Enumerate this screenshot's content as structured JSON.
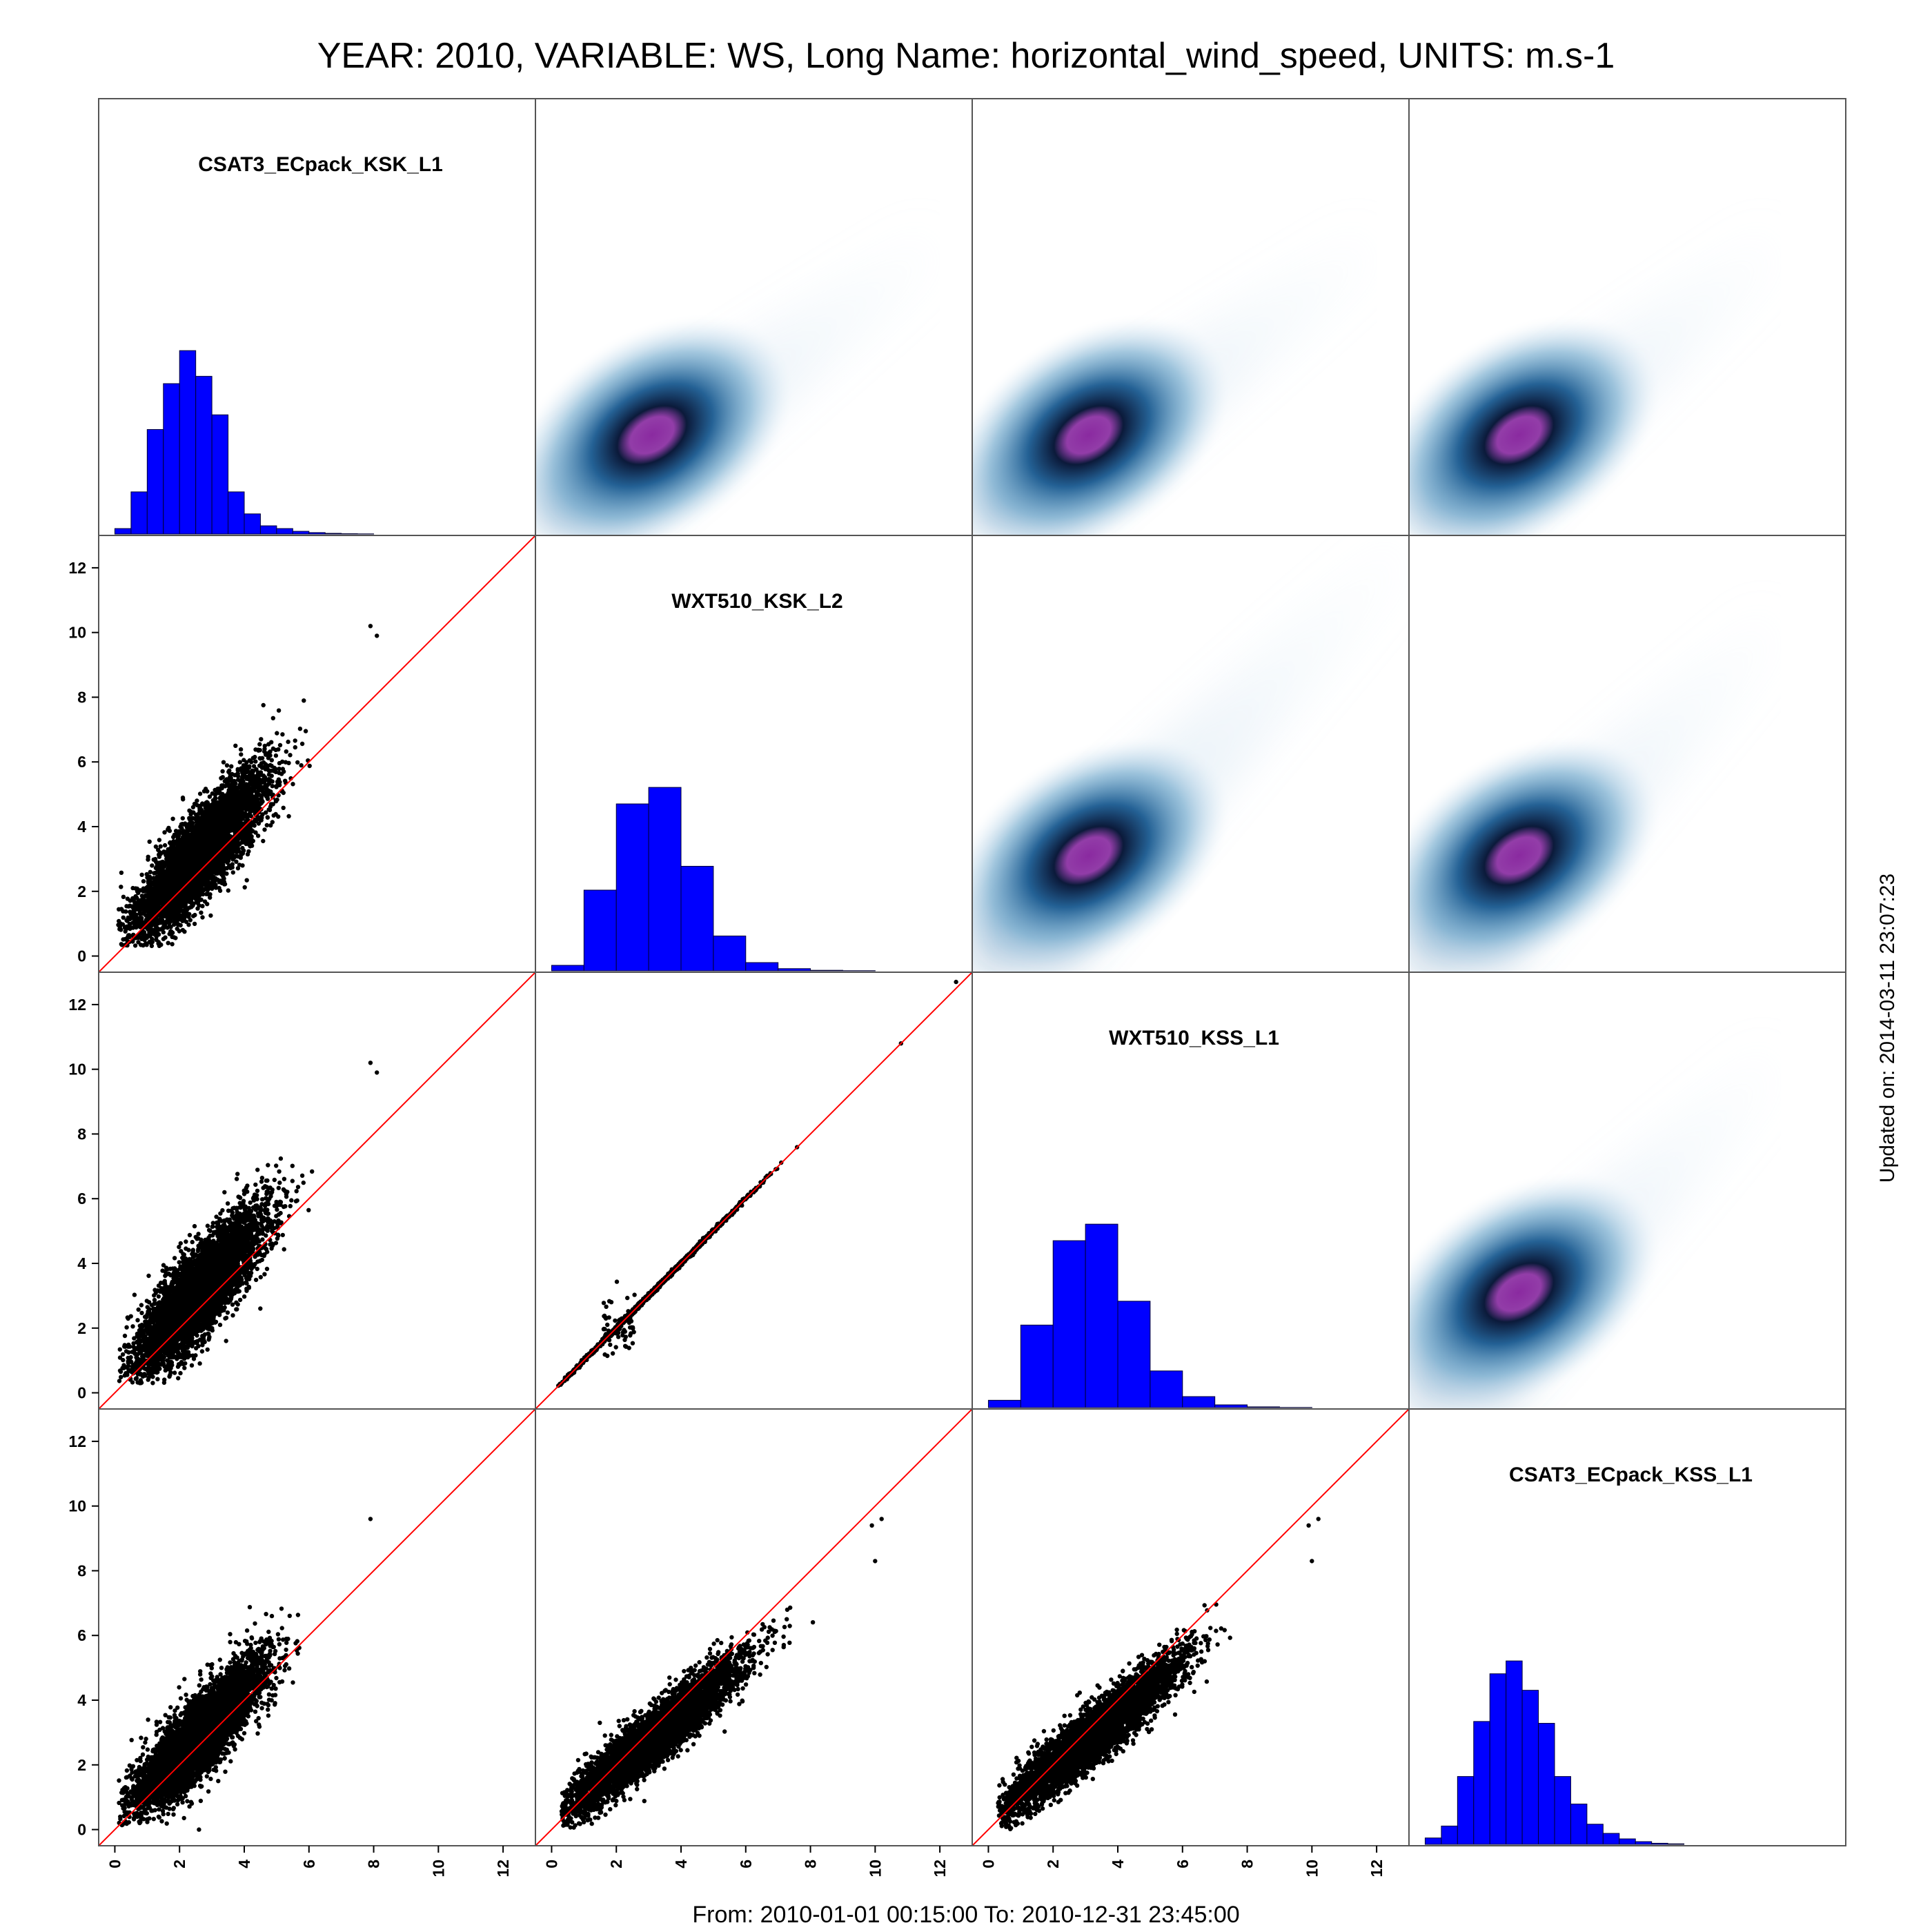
{
  "title": "YEAR: 2010, VARIABLE: WS, Long Name: horizontal_wind_speed, UNITS: m.s-1",
  "footer": "From: 2010-01-01 00:15:00 To: 2010-12-31 23:45:00",
  "updated": "Updated on: 2014-03-11 23:07:23",
  "colors": {
    "histogram_fill": "#0000ff",
    "histogram_edge": "#000033",
    "points": "#000000",
    "identity_line": "#ff0000",
    "density_low": "#ffffff",
    "density_mid": "#1a5a90",
    "density_core": "#0b1a3a",
    "density_peak": "#8a2aa0",
    "panel_border": "#555555"
  },
  "chart_data": {
    "type": "scatter",
    "layout": "scatterplot-matrix",
    "variables": [
      "CSAT3_ECpack_KSK_L1",
      "WXT510_KSK_L2",
      "WXT510_KSS_L1",
      "CSAT3_ECpack_KSS_L1"
    ],
    "diagonal": "histogram",
    "upper_panels": "2d-density",
    "lower_panels": "scatter-with-1to1-line",
    "axis_range": [
      -0.5,
      13
    ],
    "ticks": [
      0,
      2,
      4,
      6,
      8,
      10,
      12
    ],
    "tick_labels": [
      "0",
      "2",
      "4",
      "6",
      "8",
      "10",
      "12"
    ],
    "histograms": [
      {
        "variable": "CSAT3_ECpack_KSK_L1",
        "bin_start": 0,
        "bin_width": 0.5,
        "relative_heights": [
          0.03,
          0.23,
          0.57,
          0.82,
          1.0,
          0.86,
          0.65,
          0.23,
          0.11,
          0.045,
          0.03,
          0.015,
          0.008,
          0.004,
          0.002,
          0.001
        ]
      },
      {
        "variable": "WXT510_KSK_L2",
        "bin_start": 0,
        "bin_width": 1.0,
        "relative_heights": [
          0.03,
          0.44,
          0.91,
          1.0,
          0.57,
          0.19,
          0.045,
          0.012,
          0.003,
          0.001
        ]
      },
      {
        "variable": "WXT510_KSS_L1",
        "bin_start": 0,
        "bin_width": 1.0,
        "relative_heights": [
          0.04,
          0.45,
          0.91,
          1.0,
          0.58,
          0.2,
          0.06,
          0.015,
          0.004,
          0.001
        ]
      },
      {
        "variable": "CSAT3_ECpack_KSS_L1",
        "bin_start": 0,
        "bin_width": 0.5,
        "relative_heights": [
          0.035,
          0.1,
          0.37,
          0.67,
          0.93,
          1.0,
          0.84,
          0.66,
          0.37,
          0.22,
          0.11,
          0.06,
          0.03,
          0.015,
          0.006,
          0.003
        ]
      }
    ],
    "scatter_pairs": [
      {
        "row": 2,
        "col": 1,
        "x": "CSAT3_ECpack_KSK_L1",
        "y": "WXT510_KSK_L2",
        "mean": [
          2.6,
          3.1
        ],
        "sd_x": 1.0,
        "sd_y": 1.25,
        "corr": 0.84,
        "x_min": 0.1,
        "y_min": 0.3,
        "outliers": [
          [
            7.9,
            10.2
          ],
          [
            8.1,
            9.9
          ]
        ]
      },
      {
        "row": 3,
        "col": 1,
        "x": "CSAT3_ECpack_KSK_L1",
        "y": "WXT510_KSS_L1",
        "mean": [
          2.6,
          3.1
        ],
        "sd_x": 1.0,
        "sd_y": 1.25,
        "corr": 0.84,
        "x_min": 0.1,
        "y_min": 0.3,
        "outliers": [
          [
            7.9,
            10.2
          ],
          [
            8.1,
            9.9
          ]
        ]
      },
      {
        "row": 3,
        "col": 2,
        "x": "WXT510_KSK_L2",
        "y": "WXT510_KSS_L1",
        "mean": [
          3.2,
          3.2
        ],
        "sd_x": 1.35,
        "sd_y": 1.35,
        "corr": 0.9997,
        "x_min": 0.2,
        "y_min": 0.2,
        "outliers": [
          [
            12.5,
            12.7
          ],
          [
            10.8,
            10.8
          ]
        ],
        "cluster": {
          "center": [
            2.1,
            2.1
          ],
          "spread": 0.5,
          "n": 70
        }
      },
      {
        "row": 4,
        "col": 1,
        "x": "CSAT3_ECpack_KSK_L1",
        "y": "CSAT3_ECpack_KSS_L1",
        "mean": [
          2.6,
          2.9
        ],
        "sd_x": 1.0,
        "sd_y": 1.15,
        "corr": 0.86,
        "x_min": 0.1,
        "y_min": 0.1,
        "outliers": [
          [
            7.9,
            9.6
          ],
          [
            2.6,
            0.0
          ]
        ]
      },
      {
        "row": 4,
        "col": 2,
        "x": "WXT510_KSK_L2",
        "y": "CSAT3_ECpack_KSS_L1",
        "mean": [
          3.2,
          2.9
        ],
        "sd_x": 1.3,
        "sd_y": 1.15,
        "corr": 0.93,
        "x_min": 0.3,
        "y_min": 0.0,
        "outliers": [
          [
            10.2,
            9.6
          ],
          [
            9.9,
            9.4
          ],
          [
            10.0,
            8.3
          ]
        ]
      },
      {
        "row": 4,
        "col": 3,
        "x": "WXT510_KSS_L1",
        "y": "CSAT3_ECpack_KSS_L1",
        "mean": [
          3.2,
          2.9
        ],
        "sd_x": 1.3,
        "sd_y": 1.15,
        "corr": 0.93,
        "x_min": 0.3,
        "y_min": 0.0,
        "outliers": [
          [
            10.2,
            9.6
          ],
          [
            9.9,
            9.4
          ],
          [
            10.0,
            8.3
          ]
        ]
      }
    ],
    "density_panels": [
      {
        "row": 1,
        "col": 2,
        "x": "WXT510_KSK_L2",
        "y": "CSAT3_ECpack_KSK_L1",
        "center": [
          3.1,
          2.6
        ],
        "x_range": [
          -0.5,
          12
        ],
        "y_range": [
          -0.5,
          9
        ]
      },
      {
        "row": 1,
        "col": 3,
        "x": "WXT510_KSS_L1",
        "y": "CSAT3_ECpack_KSK_L1",
        "center": [
          3.1,
          2.6
        ],
        "x_range": [
          -0.5,
          12
        ],
        "y_range": [
          -0.5,
          9
        ]
      },
      {
        "row": 1,
        "col": 4,
        "x": "CSAT3_ECpack_KSS_L1",
        "y": "CSAT3_ECpack_KSK_L1",
        "center": [
          2.9,
          2.6
        ],
        "x_range": [
          -0.5,
          11
        ],
        "y_range": [
          -0.5,
          9
        ]
      },
      {
        "row": 2,
        "col": 3,
        "x": "WXT510_KSS_L1",
        "y": "WXT510_KSK_L2",
        "center": [
          3.1,
          3.1
        ],
        "x_range": [
          -0.5,
          13
        ],
        "y_range": [
          -0.5,
          13
        ]
      },
      {
        "row": 2,
        "col": 4,
        "x": "CSAT3_ECpack_KSS_L1",
        "y": "WXT510_KSK_L2",
        "center": [
          2.9,
          3.1
        ],
        "x_range": [
          -0.5,
          11
        ],
        "y_range": [
          -0.5,
          10.7
        ]
      },
      {
        "row": 3,
        "col": 4,
        "x": "CSAT3_ECpack_KSS_L1",
        "y": "WXT510_KSS_L1",
        "center": [
          2.9,
          3.1
        ],
        "x_range": [
          -0.5,
          11
        ],
        "y_range": [
          -0.5,
          10.7
        ]
      }
    ]
  }
}
